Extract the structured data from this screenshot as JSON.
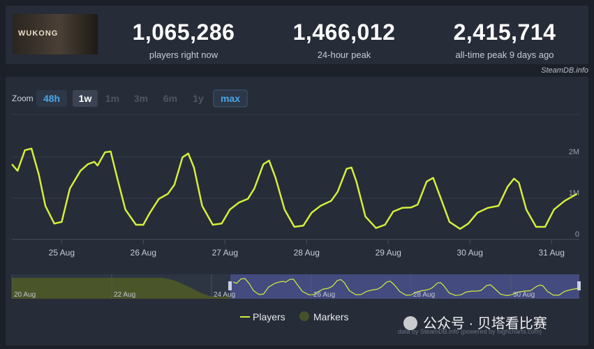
{
  "header": {
    "game_image": {
      "text": "WUKONG"
    },
    "stats": [
      {
        "value": "1,065,286",
        "label": "players right now"
      },
      {
        "value": "1,466,012",
        "label": "24-hour peak"
      },
      {
        "value": "2,415,714",
        "label": "all-time peak 9 days ago"
      }
    ],
    "source": "SteamDB.info"
  },
  "zoom": {
    "label": "Zoom",
    "options": [
      "48h",
      "1w",
      "1m",
      "3m",
      "6m",
      "1y",
      "max"
    ]
  },
  "chart_data": {
    "type": "line",
    "x": [
      24.39,
      24.46,
      24.55,
      24.63,
      24.72,
      24.8,
      24.91,
      25.0,
      25.1,
      25.23,
      25.32,
      25.4,
      25.44,
      25.53,
      25.6,
      25.68,
      25.78,
      25.91,
      26.0,
      26.08,
      26.19,
      26.3,
      26.38,
      26.48,
      26.55,
      26.62,
      26.72,
      26.85,
      26.96,
      27.06,
      27.17,
      27.28,
      27.36,
      27.47,
      27.54,
      27.62,
      27.73,
      27.85,
      27.96,
      28.06,
      28.17,
      28.3,
      28.38,
      28.49,
      28.55,
      28.61,
      28.72,
      28.85,
      28.96,
      29.06,
      29.17,
      29.28,
      29.36,
      29.47,
      29.55,
      29.64,
      29.75,
      29.88,
      29.98,
      30.09,
      30.22,
      30.35,
      30.46,
      30.54,
      30.6,
      30.69,
      30.81,
      30.92,
      31.03,
      31.16,
      31.31
    ],
    "series": [
      {
        "name": "Players",
        "color": "#d4ef3a",
        "values": [
          1690000,
          1530000,
          2030000,
          2070000,
          1440000,
          680000,
          250000,
          290000,
          1100000,
          1530000,
          1690000,
          1750000,
          1660000,
          1980000,
          2000000,
          1360000,
          590000,
          220000,
          220000,
          510000,
          850000,
          970000,
          1190000,
          1860000,
          1950000,
          1610000,
          680000,
          220000,
          250000,
          590000,
          760000,
          850000,
          1100000,
          1690000,
          1780000,
          1360000,
          590000,
          170000,
          200000,
          510000,
          680000,
          800000,
          1020000,
          1580000,
          1610000,
          1270000,
          420000,
          140000,
          220000,
          540000,
          630000,
          640000,
          710000,
          1270000,
          1360000,
          880000,
          290000,
          120000,
          250000,
          510000,
          630000,
          680000,
          1140000,
          1340000,
          1240000,
          590000,
          170000,
          170000,
          590000,
          800000,
          970000
        ]
      }
    ],
    "markers_legend": {
      "name": "Markers",
      "color": "#46512c"
    },
    "xlim": [
      24.39,
      31.34
    ],
    "xticks": [
      {
        "value": 25,
        "label": "25 Aug"
      },
      {
        "value": 26,
        "label": "26 Aug"
      },
      {
        "value": 27,
        "label": "27 Aug"
      },
      {
        "value": 28,
        "label": "28 Aug"
      },
      {
        "value": 29,
        "label": "29 Aug"
      },
      {
        "value": 30,
        "label": "30 Aug"
      },
      {
        "value": 31,
        "label": "31 Aug"
      }
    ],
    "ylim": [
      0,
      2900000
    ],
    "yticks": [
      0,
      {
        "value": 1000000,
        "label": "1M"
      },
      {
        "value": 2000000,
        "label": "2M"
      }
    ],
    "grid": true,
    "navigator_labels": [
      "20 Aug",
      "22 Aug",
      "24 Aug",
      "26 Aug",
      "28 Aug",
      "30 Aug"
    ],
    "credits": "data by SteamDB.info (powered by highcharts.com)"
  },
  "watermark": "公众号 · 贝塔看比赛"
}
